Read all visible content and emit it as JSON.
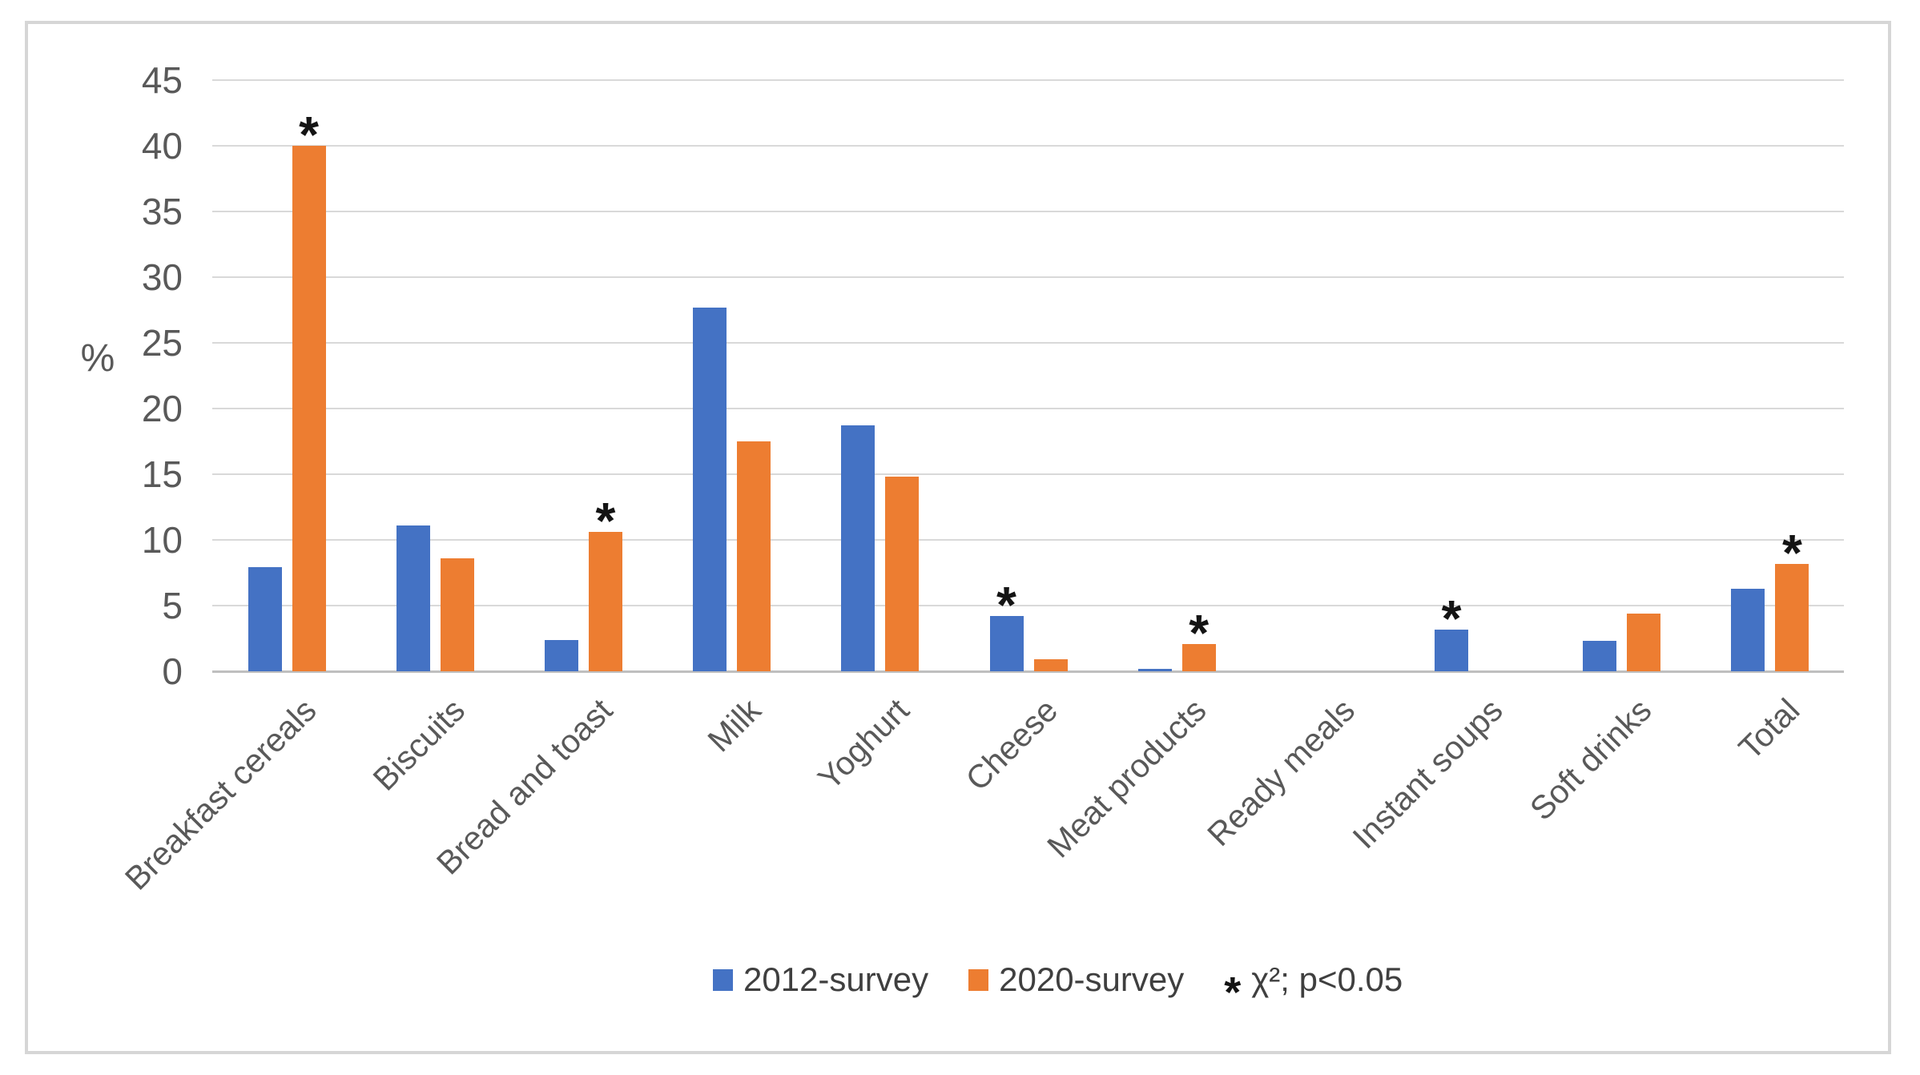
{
  "chart_data": {
    "type": "bar",
    "title": "",
    "xlabel": "",
    "ylabel": "%",
    "ylim": [
      0,
      45
    ],
    "yticks": [
      0,
      5,
      10,
      15,
      20,
      25,
      30,
      35,
      40,
      45
    ],
    "grid": "horizontal",
    "legend_position": "bottom-center",
    "categories": [
      "Breakfast cereals",
      "Biscuits",
      "Bread and toast",
      "Milk",
      "Yoghurt",
      "Cheese",
      "Meat products",
      "Ready meals",
      "Instant soups",
      "Soft drinks",
      "Total"
    ],
    "series": [
      {
        "name": "2012-survey",
        "color": "#4472C4",
        "values": [
          7.9,
          11.1,
          2.4,
          27.7,
          18.7,
          4.2,
          0.2,
          0,
          3.2,
          2.3,
          6.3
        ]
      },
      {
        "name": "2020-survey",
        "color": "#ED7D31",
        "values": [
          40,
          8.6,
          10.6,
          17.5,
          14.8,
          0.9,
          2.1,
          0,
          0,
          4.4,
          8.2
        ]
      }
    ],
    "significance_marked_series_per_category": [
      1,
      null,
      1,
      null,
      null,
      0,
      1,
      null,
      0,
      null,
      1
    ],
    "annotations": {
      "sig_symbol": "*",
      "sig_legend_label": "χ²; p<0.05"
    }
  }
}
